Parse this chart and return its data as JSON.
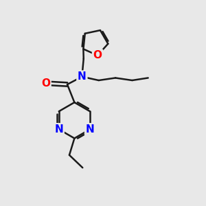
{
  "bg_color": "#e8e8e8",
  "bond_color": "#1a1a1a",
  "N_color": "#0000ff",
  "O_color": "#ff0000",
  "line_width": 1.8,
  "font_size_atom": 11,
  "figsize": [
    3.0,
    3.0
  ],
  "dpi": 100,
  "xlim": [
    0,
    10
  ],
  "ylim": [
    0,
    10
  ]
}
